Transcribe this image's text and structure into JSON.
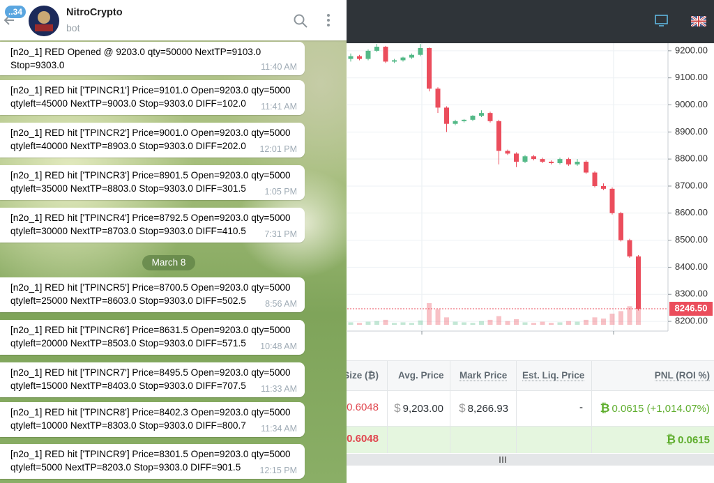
{
  "telegram": {
    "badge": "..34",
    "name": "NitroCrypto",
    "status": "bot",
    "feed": [
      {
        "lines": [
          "[n2o_1] RED Opened @ 9203.0 qty=50000 NextTP=9103.0",
          "Stop=9303.0"
        ],
        "time": "11:40 AM"
      },
      {
        "lines": [
          "[n2o_1] RED hit ['TPINCR1'] Price=9101.0 Open=9203.0 qty=5000",
          "qtyleft=45000 NextTP=9003.0 Stop=9303.0 DIFF=102.0"
        ],
        "time": "11:41 AM"
      },
      {
        "lines": [
          "[n2o_1] RED hit ['TPINCR2'] Price=9001.0 Open=9203.0 qty=5000",
          "qtyleft=40000 NextTP=8903.0 Stop=9303.0 DIFF=202.0"
        ],
        "time": "12:01 PM"
      },
      {
        "lines": [
          "[n2o_1] RED hit ['TPINCR3'] Price=8901.5 Open=9203.0 qty=5000",
          "qtyleft=35000 NextTP=8803.0 Stop=9303.0 DIFF=301.5"
        ],
        "time": "1:05 PM"
      },
      {
        "lines": [
          "[n2o_1] RED hit ['TPINCR4'] Price=8792.5 Open=9203.0 qty=5000",
          "qtyleft=30000 NextTP=8703.0 Stop=9303.0 DIFF=410.5"
        ],
        "time": "7:31 PM"
      },
      {
        "date": "March 8"
      },
      {
        "lines": [
          "[n2o_1] RED hit ['TPINCR5'] Price=8700.5 Open=9203.0 qty=5000",
          "qtyleft=25000 NextTP=8603.0 Stop=9303.0 DIFF=502.5"
        ],
        "time": "8:56 AM"
      },
      {
        "lines": [
          "[n2o_1] RED hit ['TPINCR6'] Price=8631.5 Open=9203.0 qty=5000",
          "qtyleft=20000 NextTP=8503.0 Stop=9303.0 DIFF=571.5"
        ],
        "time": "10:48 AM"
      },
      {
        "lines": [
          "[n2o_1] RED hit ['TPINCR7'] Price=8495.5 Open=9203.0 qty=5000",
          "qtyleft=15000 NextTP=8403.0 Stop=9303.0 DIFF=707.5"
        ],
        "time": "11:33 AM"
      },
      {
        "lines": [
          "[n2o_1] RED hit ['TPINCR8'] Price=8402.3 Open=9203.0 qty=5000",
          "qtyleft=10000 NextTP=8303.0 Stop=9303.0 DIFF=800.7"
        ],
        "time": "11:34 AM"
      },
      {
        "lines": [
          "[n2o_1] RED hit ['TPINCR9'] Price=8301.5 Open=9203.0 qty=5000",
          "qtyleft=5000 NextTP=8203.0 Stop=9303.0 DIFF=901.5"
        ],
        "time": "12:15 PM"
      }
    ]
  },
  "chart_data": {
    "type": "candlestick",
    "open": [
      9170,
      9180,
      9170,
      9200,
      9215,
      9160,
      9165,
      9175,
      9185,
      9210,
      9060,
      8990,
      8930,
      8940,
      8945,
      8960,
      8970,
      8940,
      8830,
      8820,
      8790,
      8810,
      8800,
      8790,
      8785,
      8800,
      8780,
      8790,
      8750,
      8700,
      8690,
      8600,
      8500,
      8440
    ],
    "high": [
      9190,
      9185,
      9205,
      9225,
      9218,
      9170,
      9178,
      9190,
      9225,
      9212,
      9065,
      8995,
      8945,
      8948,
      8962,
      8980,
      8975,
      8945,
      8835,
      8825,
      8815,
      8815,
      8805,
      8795,
      8805,
      8805,
      8800,
      8795,
      8755,
      8710,
      8695,
      8605,
      8505,
      8445
    ],
    "low": [
      9160,
      9165,
      9165,
      9195,
      9155,
      9155,
      9160,
      9170,
      9180,
      9050,
      8970,
      8900,
      8925,
      8935,
      8940,
      8955,
      8935,
      8780,
      8815,
      8770,
      8785,
      8795,
      8785,
      8780,
      8780,
      8775,
      8775,
      8745,
      8695,
      8685,
      8595,
      8495,
      8435,
      8240
    ],
    "close": [
      9180,
      9170,
      9200,
      9215,
      9160,
      9165,
      9175,
      9185,
      9210,
      9060,
      8990,
      8930,
      8940,
      8945,
      8960,
      8970,
      8940,
      8830,
      8820,
      8790,
      8810,
      8800,
      8790,
      8785,
      8800,
      8780,
      8790,
      8750,
      8700,
      8690,
      8600,
      8500,
      8440,
      8246.5
    ],
    "volume": [
      4,
      3,
      5,
      6,
      8,
      3,
      4,
      3,
      7,
      35,
      25,
      12,
      5,
      4,
      3,
      6,
      8,
      14,
      6,
      9,
      4,
      3,
      5,
      3,
      4,
      6,
      5,
      8,
      12,
      10,
      18,
      22,
      30,
      45
    ],
    "ylim": [
      8177,
      9228
    ],
    "yticks": [
      {
        "value": 8200,
        "label": "8200.00"
      },
      {
        "value": 8300,
        "label": "8300.00"
      },
      {
        "value": 8400,
        "label": "8400.00"
      },
      {
        "value": 8500,
        "label": "8500.00"
      },
      {
        "value": 8600,
        "label": "8600.00"
      },
      {
        "value": 8700,
        "label": "8700.00"
      },
      {
        "value": 8800,
        "label": "8800.00"
      },
      {
        "value": 8900,
        "label": "8900.00"
      },
      {
        "value": 9000,
        "label": "9000.00"
      },
      {
        "value": 9100,
        "label": "9100.00"
      },
      {
        "value": 9200,
        "label": "9200.00"
      }
    ],
    "last_price": {
      "value": 8246.5,
      "label": "8246.50"
    },
    "up_color": "#53b987",
    "down_color": "#eb4d5c"
  },
  "positions": {
    "headers": [
      "Size (₿)",
      "Avg. Price",
      "Mark Price",
      "Est. Liq. Price",
      "PNL (ROI %)"
    ],
    "rows": [
      [
        {
          "text": "0.6048"
        },
        {
          "symbol": "$",
          "text": "9,203.00"
        },
        {
          "symbol": "$",
          "text": "8,266.93"
        },
        {
          "text": "-"
        },
        {
          "symbol": "₿",
          "text": "0.0615 (+1,014.07%)"
        }
      ],
      [
        {
          "text": "0.6048"
        },
        null,
        null,
        null,
        {
          "symbol": "₿",
          "text": "0.0615"
        }
      ]
    ]
  }
}
